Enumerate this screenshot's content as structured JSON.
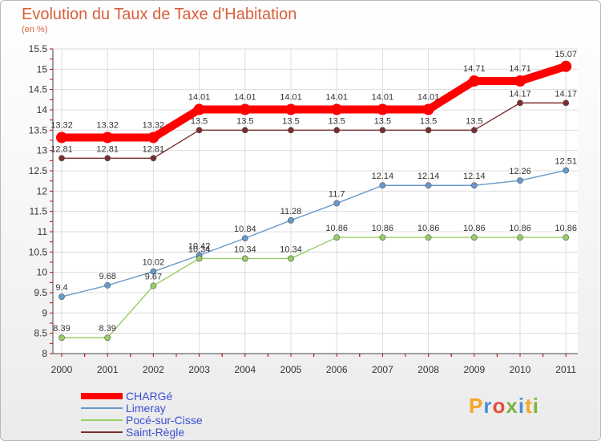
{
  "header": {
    "title": "Evolution du Taux de Taxe d'Habitation",
    "subtitle": "(en %)"
  },
  "logo": {
    "text": "Proxiti",
    "colors": [
      "#f5a623",
      "#4a90d9",
      "#e84c3d",
      "#7cb342",
      "#4a90d9",
      "#f5a623",
      "#7cb342"
    ]
  },
  "chart_data": {
    "type": "line",
    "title": "Evolution du Taux de Taxe d'Habitation",
    "ylabel": "(en %)",
    "x": [
      "2000",
      "2001",
      "2002",
      "2003",
      "2004",
      "2005",
      "2006",
      "2007",
      "2008",
      "2009",
      "2010",
      "2011"
    ],
    "ylim": [
      8,
      15.5
    ],
    "yticks": [
      "8",
      "8.5",
      "9",
      "9.5",
      "10",
      "10.5",
      "11",
      "11.5",
      "12",
      "12.5",
      "13",
      "13.5",
      "14",
      "14.5",
      "15",
      "15.5"
    ],
    "grid": true,
    "legend": "bottom-left",
    "series": [
      {
        "name": "CHARGé",
        "color": "#ff0000",
        "values": [
          13.32,
          13.32,
          13.32,
          14.01,
          14.01,
          14.01,
          14.01,
          14.01,
          14.01,
          14.71,
          14.71,
          15.07
        ],
        "labels": [
          "13.32",
          "13.32",
          "13.32",
          "14.01",
          "14.01",
          "14.01",
          "14.01",
          "14.01",
          "14.01",
          "14.71",
          "14.71",
          "15.07"
        ]
      },
      {
        "name": "Limeray",
        "color": "#6699cc",
        "values": [
          9.4,
          9.68,
          10.02,
          10.42,
          10.84,
          11.28,
          11.7,
          12.14,
          12.14,
          12.14,
          12.26,
          12.51
        ],
        "labels": [
          "9.4",
          "9.68",
          "10.02",
          "10.42",
          "10.84",
          "11.28",
          "11.7",
          "12.14",
          "12.14",
          "12.14",
          "12.26",
          "12.51"
        ]
      },
      {
        "name": "Pocé-sur-Cisse",
        "color": "#99cc66",
        "values": [
          8.39,
          8.39,
          9.67,
          10.34,
          10.34,
          10.34,
          10.86,
          10.86,
          10.86,
          10.86,
          10.86,
          10.86
        ],
        "labels": [
          "8.39",
          "8.39",
          "9.67",
          "10.34",
          "10.34",
          "10.34",
          "10.86",
          "10.86",
          "10.86",
          "10.86",
          "10.86",
          "10.86"
        ]
      },
      {
        "name": "Saint-Règle",
        "color": "#7a2e2e",
        "values": [
          12.81,
          12.81,
          12.81,
          13.5,
          13.5,
          13.5,
          13.5,
          13.5,
          13.5,
          13.5,
          14.17,
          14.17
        ],
        "labels": [
          "12.81",
          "12.81",
          "12.81",
          "13.5",
          "13.5",
          "13.5",
          "13.5",
          "13.5",
          "13.5",
          "13.5",
          "14.17",
          "14.17"
        ]
      }
    ]
  }
}
